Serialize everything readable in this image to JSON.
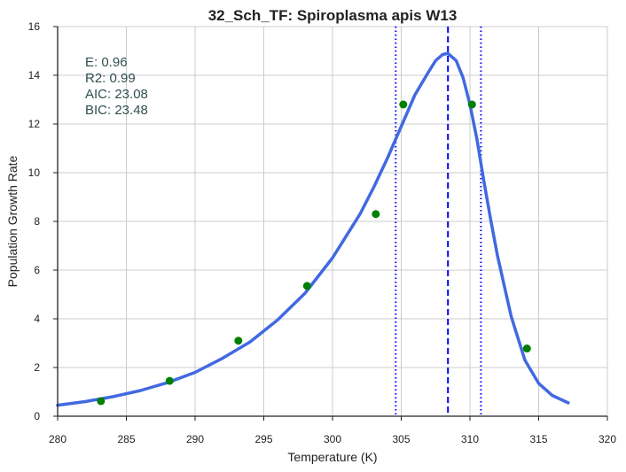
{
  "chart_data": {
    "type": "scatter",
    "title": "32_Sch_TF: Spiroplasma apis W13",
    "xlabel": "Temperature (K)",
    "ylabel": "Population Growth Rate",
    "xlim": [
      280,
      320
    ],
    "ylim": [
      0,
      16
    ],
    "xticks": [
      280,
      285,
      290,
      295,
      300,
      305,
      310,
      315,
      320
    ],
    "yticks": [
      0,
      2,
      4,
      6,
      8,
      10,
      12,
      14,
      16
    ],
    "grid": true,
    "annotations": [
      "E:  0.96",
      "R2:  0.99",
      "AIC: 23.08",
      "BIC: 23.48"
    ],
    "series": [
      {
        "kind": "scatter",
        "color": "#008000",
        "x": [
          283.15,
          288.15,
          293.15,
          298.15,
          303.15,
          305.15,
          310.15,
          314.15
        ],
        "y": [
          0.62,
          1.45,
          3.1,
          5.35,
          8.3,
          12.8,
          12.8,
          2.78
        ]
      },
      {
        "kind": "fitted-curve",
        "color": "#4169e1",
        "x": [
          280,
          282,
          284,
          286,
          288,
          290,
          292,
          294,
          296,
          298,
          300,
          302,
          303,
          304,
          305,
          306,
          307,
          307.5,
          308,
          308.4,
          309,
          309.5,
          310,
          310.5,
          311,
          311.5,
          312,
          313,
          314,
          315,
          316,
          317.15
        ],
        "y": [
          0.45,
          0.6,
          0.8,
          1.05,
          1.38,
          1.8,
          2.38,
          3.05,
          3.95,
          5.05,
          6.5,
          8.3,
          9.4,
          10.6,
          11.9,
          13.2,
          14.15,
          14.6,
          14.85,
          14.9,
          14.6,
          13.9,
          12.8,
          11.4,
          9.7,
          8.1,
          6.6,
          4.1,
          2.3,
          1.35,
          0.85,
          0.55
        ]
      }
    ],
    "vlines": [
      {
        "x": 304.6,
        "style": "dotted",
        "color": "#0000ff"
      },
      {
        "x": 308.4,
        "style": "dashed",
        "color": "#0000ff"
      },
      {
        "x": 310.8,
        "style": "dotted",
        "color": "#0000ff"
      }
    ]
  }
}
